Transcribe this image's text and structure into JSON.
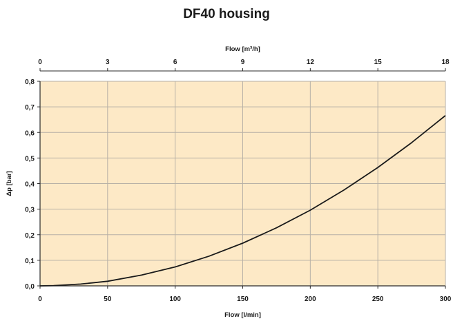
{
  "chart_data": {
    "type": "line",
    "title": "DF40 housing",
    "xlabel": "Flow [l/min]",
    "x2label": "Flow [m³/h]",
    "ylabel": "Δp [bar]",
    "xlim": [
      0,
      300
    ],
    "x2lim": [
      0,
      18
    ],
    "ylim": [
      0,
      0.8
    ],
    "x_ticks": [
      0,
      50,
      100,
      150,
      200,
      250,
      300
    ],
    "x_tick_labels": [
      "0",
      "50",
      "100",
      "150",
      "200",
      "250",
      "300"
    ],
    "x2_ticks": [
      0,
      3,
      6,
      9,
      12,
      15,
      18
    ],
    "x2_tick_labels": [
      "0",
      "3",
      "6",
      "9",
      "12",
      "15",
      "18"
    ],
    "y_ticks": [
      0,
      0.1,
      0.2,
      0.3,
      0.4,
      0.5,
      0.6,
      0.7,
      0.8
    ],
    "y_tick_labels": [
      "0,0",
      "0,1",
      "0,2",
      "0,3",
      "0,4",
      "0,5",
      "0,6",
      "0,7",
      "0,8"
    ],
    "grid": true,
    "background_color": "#fde9c6",
    "grid_color": "#b7b0a6",
    "line_color": "#1a1a1a",
    "series": [
      {
        "x": [
          0,
          10,
          20,
          30,
          50,
          75,
          100,
          125,
          150,
          175,
          200,
          225,
          250,
          275,
          300
        ],
        "y": [
          0,
          0.001,
          0.004,
          0.007,
          0.018,
          0.042,
          0.074,
          0.116,
          0.167,
          0.227,
          0.296,
          0.375,
          0.463,
          0.56,
          0.666
        ]
      }
    ]
  }
}
